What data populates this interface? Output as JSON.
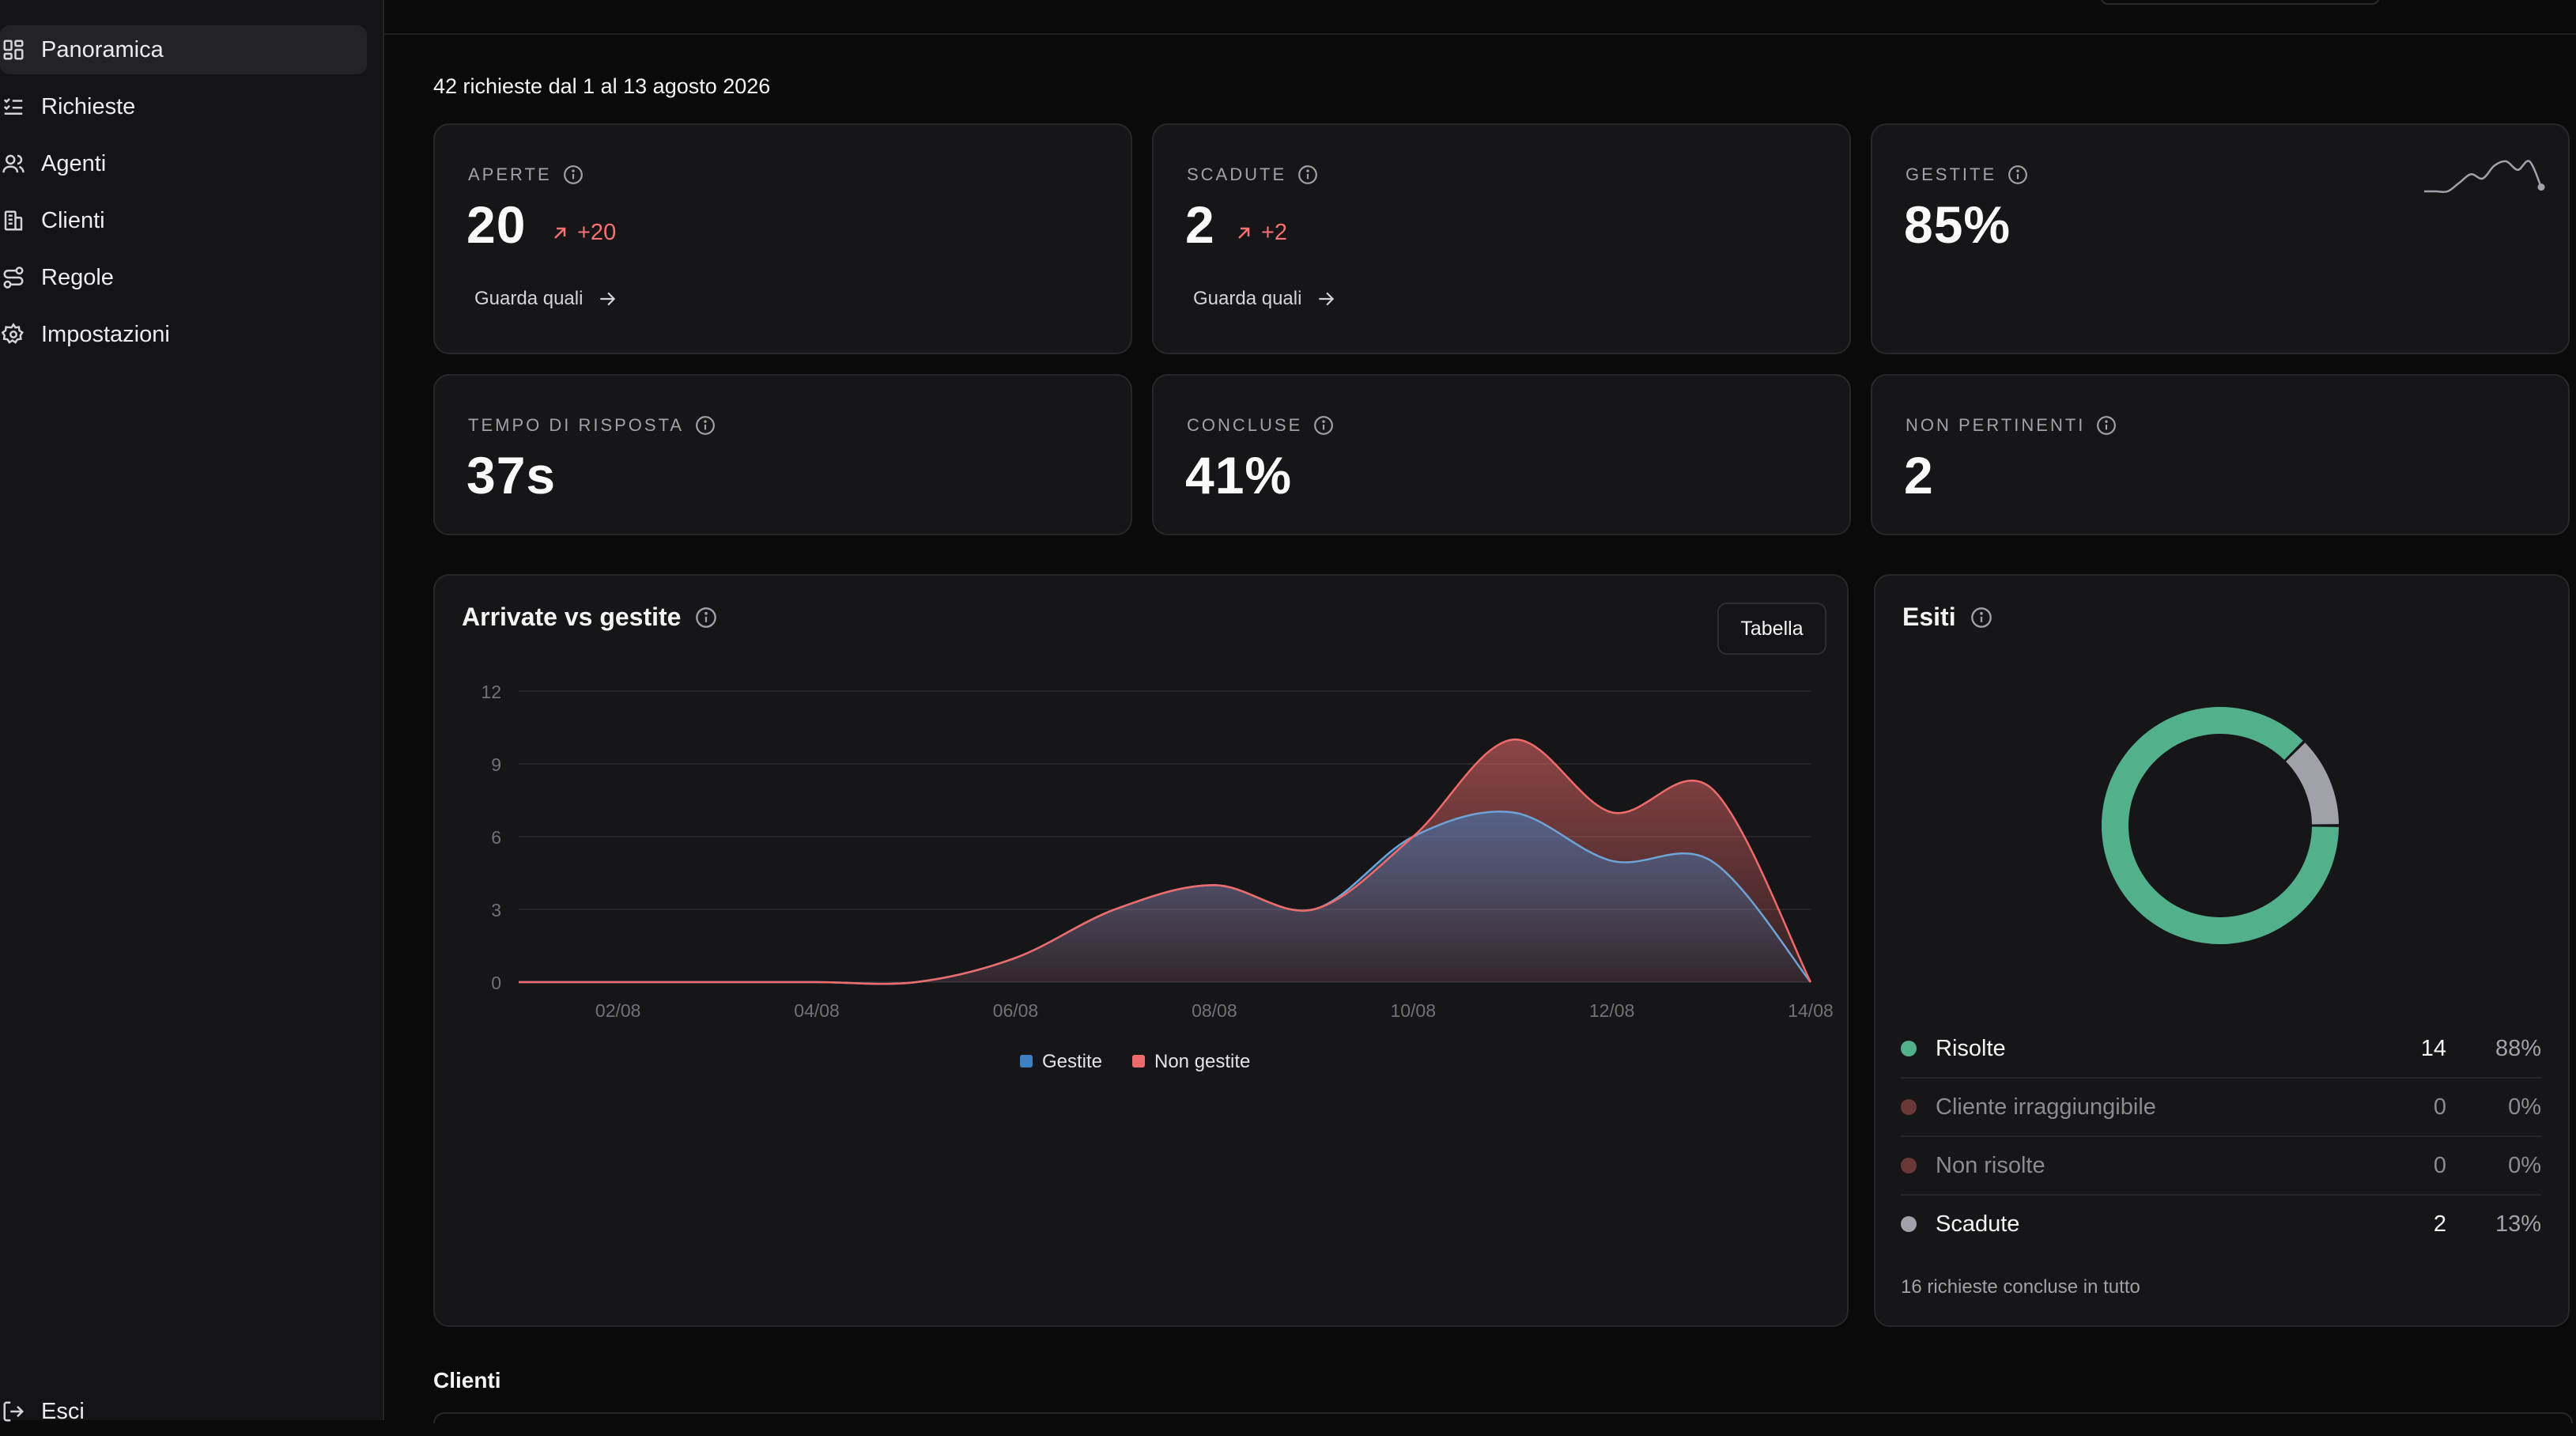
{
  "sidebar": {
    "items": [
      {
        "label": "Panoramica",
        "icon": "dashboard-icon",
        "active": true
      },
      {
        "label": "Richieste",
        "icon": "list-check-icon",
        "active": false
      },
      {
        "label": "Agenti",
        "icon": "users-icon",
        "active": false
      },
      {
        "label": "Clienti",
        "icon": "building-icon",
        "active": false
      },
      {
        "label": "Regole",
        "icon": "route-icon",
        "active": false
      },
      {
        "label": "Impostazioni",
        "icon": "gear-icon",
        "active": false
      }
    ],
    "logout": "Esci"
  },
  "summary": "42 richieste dal 1 al 13 agosto 2026",
  "kpis": {
    "aperte": {
      "label": "APERTE",
      "value": "20",
      "delta": "+20",
      "link": "Guarda quali"
    },
    "scadute": {
      "label": "SCADUTE",
      "value": "2",
      "delta": "+2",
      "link": "Guarda quali"
    },
    "gestite": {
      "label": "GESTITE",
      "value": "85%"
    },
    "tempo": {
      "label": "TEMPO DI RISPOSTA",
      "value": "37s"
    },
    "concluse": {
      "label": "CONCLUSE",
      "value": "41%"
    },
    "non_pertinenti": {
      "label": "NON PERTINENTI",
      "value": "2"
    }
  },
  "area_panel": {
    "title": "Arrivate vs gestite",
    "button": "Tabella"
  },
  "esiti": {
    "title": "Esiti",
    "rows": [
      {
        "name": "Risolte",
        "count": "14",
        "pct": "88%",
        "color": "#52b08a",
        "muted": false
      },
      {
        "name": "Cliente irraggiungibile",
        "count": "0",
        "pct": "0%",
        "color": "#6b3838",
        "muted": true
      },
      {
        "name": "Non risolte",
        "count": "0",
        "pct": "0%",
        "color": "#6b3838",
        "muted": true
      },
      {
        "name": "Scadute",
        "count": "2",
        "pct": "13%",
        "color": "#a1a1aa",
        "muted": false
      }
    ],
    "footer": "16 richieste concluse in tutto"
  },
  "section_clienti": "Clienti",
  "colors": {
    "gestite": "#3b82c4",
    "non_gestite": "#ef6b6b",
    "risolte": "#52b08a",
    "scadute": "#a1a1aa"
  },
  "chart_data": [
    {
      "type": "area",
      "title": "Arrivate vs gestite",
      "x": [
        "01/08",
        "02/08",
        "03/08",
        "04/08",
        "05/08",
        "06/08",
        "07/08",
        "08/08",
        "09/08",
        "10/08",
        "11/08",
        "12/08",
        "13/08",
        "14/08"
      ],
      "x_tick_labels": [
        "02/08",
        "04/08",
        "06/08",
        "08/08",
        "10/08",
        "12/08",
        "14/08"
      ],
      "series": [
        {
          "name": "Gestite",
          "values": [
            0,
            0,
            0,
            0,
            0,
            1,
            3,
            4,
            3,
            6,
            7,
            5,
            5,
            0
          ]
        },
        {
          "name": "Non gestite",
          "values": [
            0,
            0,
            0,
            0,
            0,
            0,
            0,
            0,
            0,
            0,
            3,
            2,
            3,
            0
          ]
        }
      ],
      "stacked": true,
      "ylim": [
        0,
        12
      ],
      "y_ticks": [
        0,
        3,
        6,
        9,
        12
      ],
      "legend": "bottom-center",
      "grid": true
    },
    {
      "type": "pie",
      "title": "Esiti",
      "donut": true,
      "categories": [
        "Risolte",
        "Cliente irraggiungibile",
        "Non risolte",
        "Scadute"
      ],
      "values": [
        14,
        0,
        0,
        2
      ]
    }
  ],
  "sparkline": {
    "values": [
      0,
      0,
      0,
      2,
      4,
      3,
      6,
      7,
      5,
      7,
      1
    ]
  }
}
